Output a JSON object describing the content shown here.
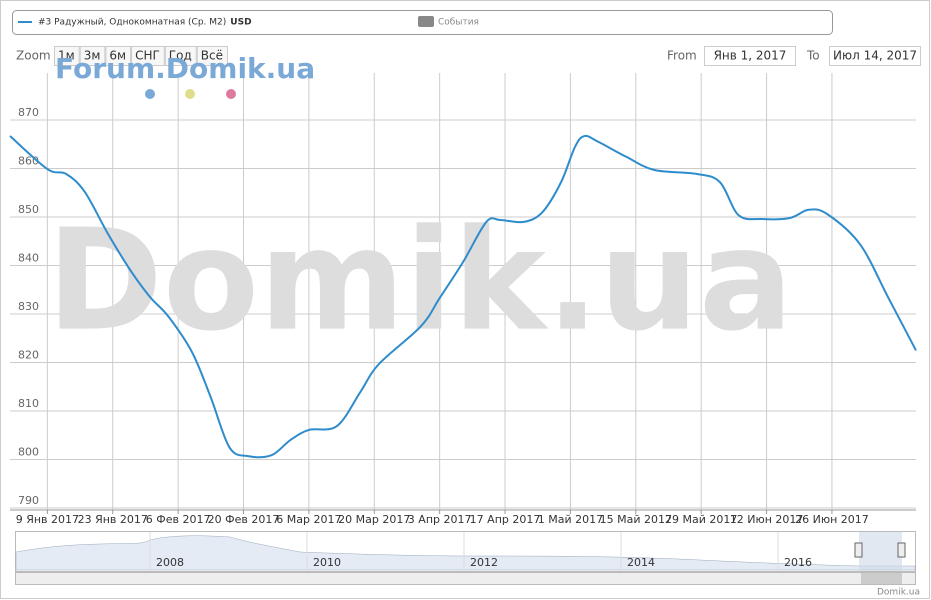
{
  "chart_data": {
    "type": "line",
    "x": [
      "2017-01-01",
      "2017-01-09",
      "2017-01-13",
      "2017-01-17",
      "2017-01-22",
      "2017-01-27",
      "2017-01-31",
      "2017-02-04",
      "2017-02-09",
      "2017-02-13",
      "2017-02-17",
      "2017-02-21",
      "2017-02-26",
      "2017-03-02",
      "2017-03-06",
      "2017-03-12",
      "2017-03-17",
      "2017-03-21",
      "2017-03-30",
      "2017-04-03",
      "2017-04-08",
      "2017-04-13",
      "2017-04-16",
      "2017-04-21",
      "2017-04-25",
      "2017-04-29",
      "2017-05-02",
      "2017-05-04",
      "2017-05-07",
      "2017-05-13",
      "2017-05-19",
      "2017-05-28",
      "2017-06-02",
      "2017-06-06",
      "2017-06-11",
      "2017-06-17",
      "2017-06-21",
      "2017-06-25",
      "2017-07-02",
      "2017-07-08",
      "2017-07-14"
    ],
    "series": [
      {
        "name": "#3 Радужный, Однокомнатная (Ср. М2)",
        "color": "#2f8ccc",
        "values": [
          866.7,
          859.9,
          858.9,
          855.2,
          846.5,
          838.7,
          833.5,
          829.4,
          822.1,
          812.8,
          802.5,
          800.7,
          800.9,
          804.0,
          806.1,
          806.9,
          813.9,
          819.7,
          827.5,
          833.3,
          840.7,
          849.0,
          849.4,
          849.0,
          851.0,
          857.2,
          864.5,
          866.7,
          865.5,
          862.4,
          859.7,
          858.9,
          857.2,
          850.4,
          849.6,
          849.8,
          851.5,
          850.6,
          844.4,
          833.5,
          822.5
        ]
      }
    ],
    "xlim": [
      "2017-01-01",
      "2017-07-14"
    ],
    "xticks": [
      {
        "value": "2017-01-09",
        "label": "9 Янв 2017"
      },
      {
        "value": "2017-01-23",
        "label": "23 Янв 2017"
      },
      {
        "value": "2017-02-06",
        "label": "6 Фев 2017"
      },
      {
        "value": "2017-02-20",
        "label": "20 Фев 2017"
      },
      {
        "value": "2017-03-06",
        "label": "6 Мар 2017"
      },
      {
        "value": "2017-03-20",
        "label": "20 Мар 2017"
      },
      {
        "value": "2017-04-03",
        "label": "3 Апр 2017"
      },
      {
        "value": "2017-04-17",
        "label": "17 Апр 2017"
      },
      {
        "value": "2017-05-01",
        "label": "1 Май 2017"
      },
      {
        "value": "2017-05-15",
        "label": "15 Май 2017"
      },
      {
        "value": "2017-05-29",
        "label": "29 Май 2017"
      },
      {
        "value": "2017-06-12",
        "label": "12 Июн 2017"
      },
      {
        "value": "2017-06-26",
        "label": "26 Июн 2017"
      }
    ],
    "ylim": [
      789.6,
      879.7
    ],
    "yticks": [
      790,
      800,
      810,
      820,
      830,
      840,
      850,
      860,
      870
    ],
    "grid": true
  },
  "ui": {
    "legend": {
      "currency": "USD",
      "events": "События"
    },
    "zoom": {
      "label": "Zoom",
      "buttons": [
        "1м",
        "3м",
        "6м",
        "СНГ",
        "Год",
        "Всё"
      ]
    },
    "range": {
      "from_label": "From",
      "from_value": "Янв 1, 2017",
      "to_label": "To",
      "to_value": "Июл 14, 2017"
    },
    "watermark_small": "Forum.Domik.ua",
    "watermark_big": "Domik.ua",
    "navigator": {
      "years": [
        "2008",
        "2010",
        "2012",
        "2014",
        "2016"
      ]
    },
    "credit": "Domik.ua"
  }
}
